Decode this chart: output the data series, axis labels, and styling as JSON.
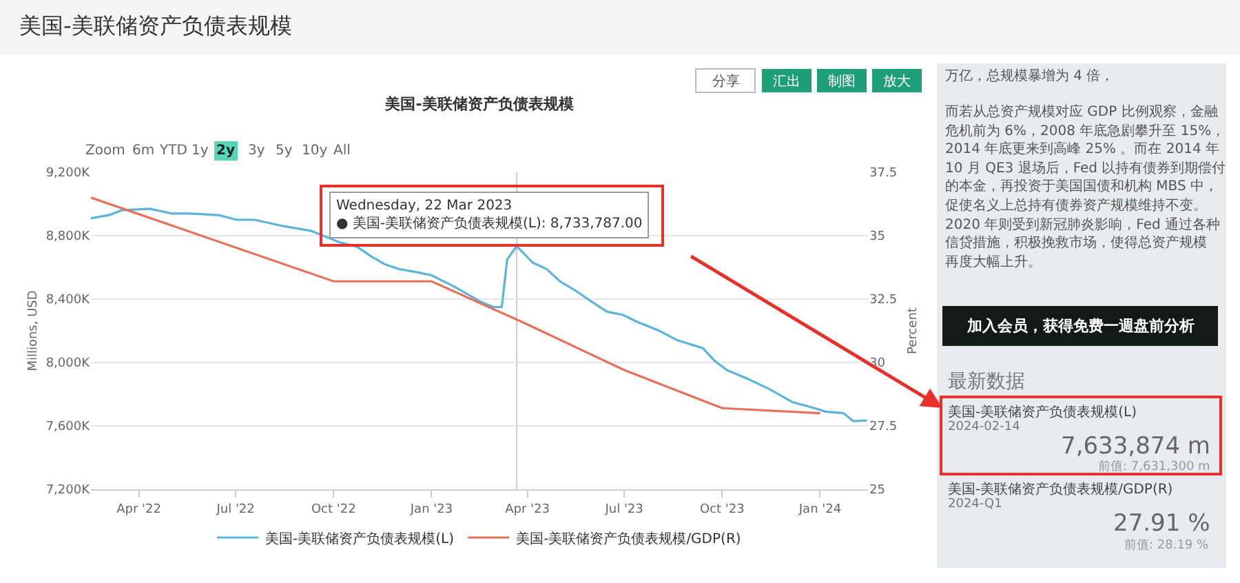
{
  "chart_data": {
    "type": "line",
    "title": "美国-美联储资产负债表规模",
    "ylabel": "Millions, USD",
    "y2label": "Percent",
    "series": [
      {
        "name": "美国-美联储资产负债表规模(L)",
        "color": "#5ab4dc",
        "x": [
          "2022-02-15",
          "2022-03-04",
          "2022-03-16",
          "2022-04-11",
          "2022-05-02",
          "2022-05-19",
          "2022-06-15",
          "2022-07-02",
          "2022-07-19",
          "2022-08-15",
          "2022-09-10",
          "2022-10-06",
          "2022-10-23",
          "2022-11-05",
          "2022-11-18",
          "2022-12-01",
          "2022-12-18",
          "2023-01-01",
          "2023-01-22",
          "2023-02-04",
          "2023-02-17",
          "2023-02-28",
          "2023-03-08",
          "2023-03-13",
          "2023-03-22",
          "2023-04-06",
          "2023-04-19",
          "2023-05-02",
          "2023-05-17",
          "2023-05-30",
          "2023-06-15",
          "2023-06-30",
          "2023-07-12",
          "2023-08-03",
          "2023-08-20",
          "2023-09-13",
          "2023-09-24",
          "2023-10-06",
          "2023-10-24",
          "2023-11-15",
          "2023-12-06",
          "2023-12-28",
          "2024-01-06",
          "2024-01-23",
          "2024-02-01",
          "2024-02-14"
        ],
        "values": [
          8910000,
          8930000,
          8960000,
          8970000,
          8940000,
          8940000,
          8930000,
          8900000,
          8900000,
          8860000,
          8830000,
          8760000,
          8730000,
          8670000,
          8620000,
          8590000,
          8570000,
          8550000,
          8480000,
          8430000,
          8380000,
          8350000,
          8350000,
          8650000,
          8733787,
          8630000,
          8590000,
          8510000,
          8450000,
          8390000,
          8320000,
          8300000,
          8260000,
          8200000,
          8140000,
          8090000,
          8010000,
          7950000,
          7900000,
          7830000,
          7750000,
          7710000,
          7690000,
          7680000,
          7630000,
          7633874
        ]
      },
      {
        "name": "美国-美联储资产负债表规模/GDP(R)",
        "color": "#e8705a",
        "axis": "y2",
        "x": [
          "2022-02-15",
          "2022-10-01",
          "2023-01-01",
          "2023-04-01",
          "2023-07-01",
          "2023-10-01",
          "2024-01-01"
        ],
        "values": [
          36.5,
          33.2,
          33.2,
          31.5,
          29.7,
          28.2,
          28.0
        ]
      }
    ],
    "xlim": [
      "2022-02-15",
      "2024-02-15"
    ],
    "xticks": [
      {
        "value": "2022-04-01",
        "label": "Apr '22"
      },
      {
        "value": "2022-07-01",
        "label": "Jul '22"
      },
      {
        "value": "2022-10-01",
        "label": "Oct '22"
      },
      {
        "value": "2023-01-01",
        "label": "Jan '23"
      },
      {
        "value": "2023-04-01",
        "label": "Apr '23"
      },
      {
        "value": "2023-07-01",
        "label": "Jul '23"
      },
      {
        "value": "2023-10-01",
        "label": "Oct '23"
      },
      {
        "value": "2024-01-01",
        "label": "Jan '24"
      }
    ],
    "ylim": [
      7200000,
      9200000
    ],
    "yticks": [
      {
        "value": 7200000,
        "label": "7,200K"
      },
      {
        "value": 7600000,
        "label": "7,600K"
      },
      {
        "value": 8000000,
        "label": "8,000K"
      },
      {
        "value": 8400000,
        "label": "8,400K"
      },
      {
        "value": 8800000,
        "label": "8,800K"
      },
      {
        "value": 9200000,
        "label": "9,200K"
      }
    ],
    "y2lim": [
      25,
      37.5
    ],
    "y2ticks": [
      25,
      27.5,
      30,
      32.5,
      35,
      37.5
    ],
    "grid": "y",
    "legend": "bottom",
    "ref_lines": [
      {
        "axis": "x",
        "value": "2023-03-22",
        "color": "#cccccc"
      }
    ],
    "annotations": [
      "美国-美联储资产负债表规模",
      "分享",
      "汇出",
      "制图",
      "放大",
      "Zoom",
      "6m",
      "YTD",
      "1y",
      "2y",
      "3y",
      "5y",
      "10y",
      "All",
      {
        "text": "Wednesday, 22 Mar 2023\n● 美国-美联储资产负债表规模(L): 8,733,787.00",
        "x": "2023-03-22",
        "y": 8733787
      },
      "万亿，总规模暴增为 4 倍，",
      "而若从总资产规模对应 GDP 比例观察，金融",
      "危机前为 6%，2008 年底急剧攀升至 15%，",
      "2014 年底更来到高峰 25% 。而在 2014 年",
      "10 月 QE3 退场后，Fed 以持有债券到期偿付",
      "的本金，再投资于美国国债和机构 MBS 中，",
      "促使名义上总持有债券资产规模维持不变。",
      "2020 年则受到新冠肺炎影响，Fed 通过各种",
      "信贷措施，积极挽救市场，使得总资产规模",
      "再度大幅上升。",
      "加入会员，获得免费一週盘前分析",
      "最新数据",
      "美国-美联储资产负债表规模(L)",
      "2024-02-14",
      "7,633,874 m",
      "前值: 7,631,300 m",
      "美国-美联储资产负债表规模/GDP(R)",
      "2024-Q1",
      "27.91 %",
      "前值: 28.19 %"
    ]
  }
}
